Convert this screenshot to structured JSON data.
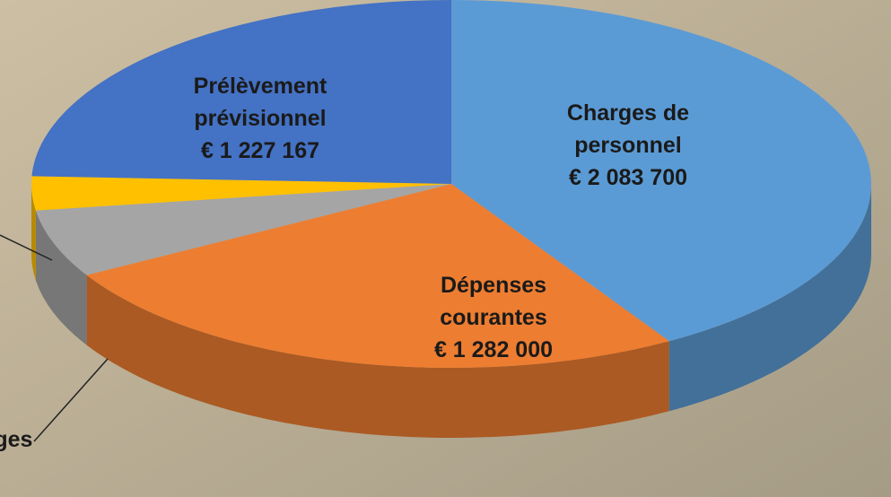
{
  "chart_data": {
    "type": "pie",
    "categories": [
      "Charges de personnel",
      "Dépenses courantes",
      "rges",
      null,
      "Prélèvement prévisionnel"
    ],
    "values": [
      2083700,
      1282000,
      300000,
      150000,
      1227167
    ],
    "value_labels": [
      "€ 2 083 700",
      "€ 1 282 000",
      null,
      null,
      "€ 1 227 167"
    ],
    "colors": [
      "#5b9bd5",
      "#ed7d31",
      "#a5a5a5",
      "#ffc000",
      "#4472c4"
    ]
  }
}
